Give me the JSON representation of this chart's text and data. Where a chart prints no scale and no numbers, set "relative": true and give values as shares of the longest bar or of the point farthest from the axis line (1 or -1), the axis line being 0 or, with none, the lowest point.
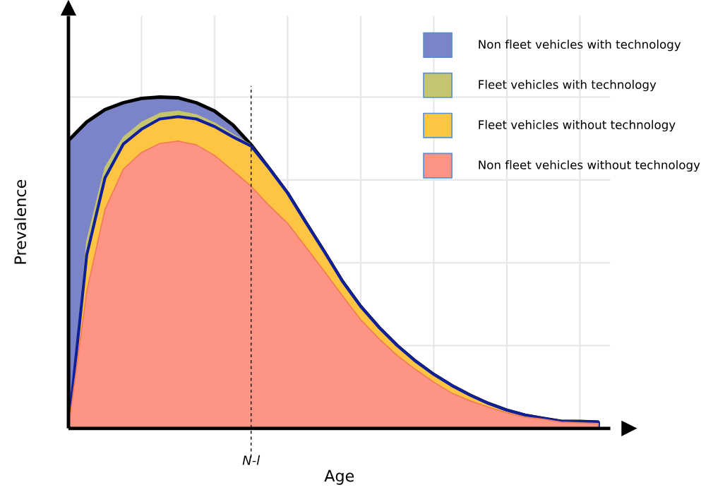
{
  "chart_data": {
    "type": "area",
    "stacked": true,
    "relative": true,
    "xlabel": "Age",
    "ylabel": "Prevalence",
    "categories": [
      null,
      null,
      null,
      null,
      null,
      null,
      null,
      null,
      null,
      null,
      null,
      null,
      null,
      null,
      null,
      null,
      null,
      null,
      null,
      null,
      null,
      null,
      null,
      null,
      null,
      null,
      null,
      null,
      null,
      null
    ],
    "series": [
      {
        "name": "Non fleet vehicles without technology",
        "color": "#fe9484",
        "values": [
          0,
          0.413,
          0.661,
          0.782,
          0.833,
          0.86,
          0.867,
          0.856,
          0.824,
          0.778,
          0.731,
          0.672,
          0.619,
          0.547,
          0.475,
          0.4,
          0.328,
          0.271,
          0.22,
          0.178,
          0.14,
          0.106,
          0.083,
          0.064,
          0.047,
          0.034,
          0.028,
          0.019,
          0.017,
          0.015
        ]
      },
      {
        "name": "Fleet vehicles without technology",
        "color": "#fec542",
        "values": [
          0,
          0.11,
          0.095,
          0.076,
          0.07,
          0.074,
          0.074,
          0.078,
          0.087,
          0.102,
          0.121,
          0.112,
          0.091,
          0.074,
          0.059,
          0.044,
          0.04,
          0.034,
          0.03,
          0.025,
          0.023,
          0.023,
          0.017,
          0.011,
          0.008,
          0.006,
          0.002,
          0.002,
          0.004,
          0.004
        ]
      },
      {
        "name": "Fleet vehicles with technology",
        "color": "#c5c46f",
        "values": [
          0,
          0.042,
          0.032,
          0.021,
          0.021,
          0.017,
          0.017,
          0.013,
          0.011,
          0.008,
          0.004,
          0,
          0,
          0,
          0,
          0,
          0,
          0,
          0,
          0,
          0,
          0,
          0,
          0,
          0,
          0,
          0,
          0,
          0,
          0
        ]
      },
      {
        "name": "Non fleet vehicles with technology",
        "color": "#7b83c9",
        "values": [
          0.869,
          0.36,
          0.174,
          0.104,
          0.072,
          0.049,
          0.04,
          0.036,
          0.036,
          0.028,
          0,
          0,
          0,
          0,
          0,
          0,
          0,
          0,
          0,
          0,
          0,
          0,
          0,
          0,
          0,
          0,
          0,
          0,
          0,
          0
        ]
      }
    ],
    "annotations": [
      "N-l"
    ],
    "grid": true,
    "legend": "top right",
    "tick_labels": false
  }
}
